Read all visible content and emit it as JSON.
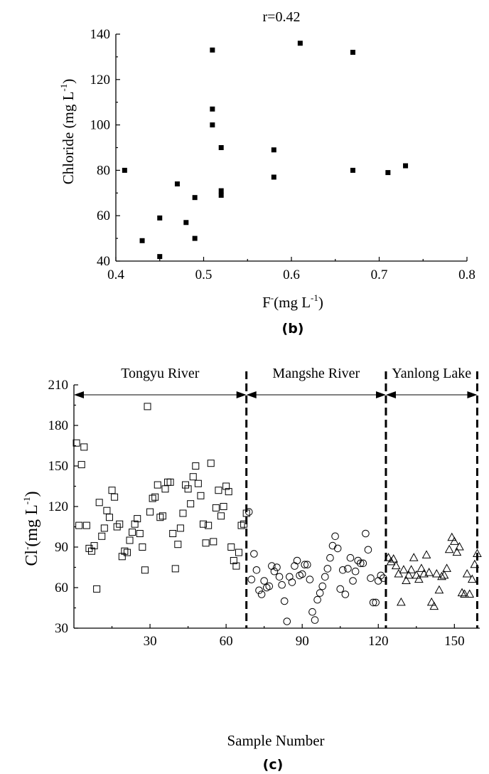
{
  "chart_data": [
    {
      "type": "scatter",
      "panel_label": "(b)",
      "title": "r=0.42",
      "xlabel": "F-(mg L-1)",
      "ylabel": "Chloride (mg L-1)",
      "xlabel_parts": {
        "base": "F",
        "sup1": "-",
        "mid": "(mg L",
        "sup2": "-1",
        "end": ")"
      },
      "ylabel_parts": {
        "base": "Chloride (mg L",
        "sup": "-1",
        "end": ")"
      },
      "xlim": [
        0.4,
        0.8
      ],
      "ylim": [
        40,
        140
      ],
      "xticks": [
        0.4,
        0.5,
        0.6,
        0.7,
        0.8
      ],
      "xtick_labels": [
        "0.4",
        "0.5",
        "0.6",
        "0.7",
        "0.8"
      ],
      "yticks": [
        40,
        60,
        80,
        100,
        120,
        140
      ],
      "ytick_labels": [
        "40",
        "60",
        "80",
        "100",
        "120",
        "140"
      ],
      "grid": false,
      "marker": "filled-square",
      "series": [
        {
          "points": [
            [
              0.41,
              80
            ],
            [
              0.43,
              49
            ],
            [
              0.45,
              59
            ],
            [
              0.45,
              42
            ],
            [
              0.47,
              74
            ],
            [
              0.48,
              57
            ],
            [
              0.49,
              68
            ],
            [
              0.49,
              50
            ],
            [
              0.51,
              133
            ],
            [
              0.51,
              107
            ],
            [
              0.51,
              100
            ],
            [
              0.52,
              90
            ],
            [
              0.52,
              71
            ],
            [
              0.52,
              69
            ],
            [
              0.58,
              89
            ],
            [
              0.58,
              77
            ],
            [
              0.61,
              136
            ],
            [
              0.67,
              132
            ],
            [
              0.67,
              80
            ],
            [
              0.71,
              79
            ],
            [
              0.73,
              82
            ]
          ]
        }
      ]
    },
    {
      "type": "scatter",
      "panel_label": "(c)",
      "xlabel": "Sample Number",
      "ylabel": "Cl-(mg L-1)",
      "ylabel_parts": {
        "base": "Cl",
        "sup1": "-",
        "mid": "(mg L",
        "sup2": "-1",
        "end": ")"
      },
      "xlim": [
        0,
        160
      ],
      "ylim": [
        30,
        210
      ],
      "xticks": [
        30,
        60,
        90,
        120,
        150
      ],
      "xtick_labels": [
        "30",
        "60",
        "90",
        "120",
        "150"
      ],
      "yticks": [
        30,
        60,
        90,
        120,
        150,
        180,
        210
      ],
      "ytick_labels": [
        "30",
        "60",
        "90",
        "120",
        "150",
        "180",
        "210"
      ],
      "grid": false,
      "regions": [
        {
          "label": "Tongyu River",
          "start": 0,
          "end": 68
        },
        {
          "label": "Mangshe River",
          "start": 68,
          "end": 123
        },
        {
          "label": "Yanlong Lake",
          "start": 123,
          "end": 159
        }
      ],
      "dividers": [
        68,
        123,
        159
      ],
      "series": [
        {
          "marker": "open-square",
          "points": [
            [
              1,
              167
            ],
            [
              2,
              106
            ],
            [
              3,
              151
            ],
            [
              4,
              164
            ],
            [
              5,
              106
            ],
            [
              6,
              89
            ],
            [
              7,
              87
            ],
            [
              8,
              91
            ],
            [
              9,
              59
            ],
            [
              10,
              123
            ],
            [
              11,
              98
            ],
            [
              12,
              104
            ],
            [
              13,
              117
            ],
            [
              14,
              112
            ],
            [
              15,
              132
            ],
            [
              16,
              127
            ],
            [
              17,
              105
            ],
            [
              18,
              107
            ],
            [
              19,
              83
            ],
            [
              20,
              87
            ],
            [
              21,
              86
            ],
            [
              22,
              95
            ],
            [
              23,
              101
            ],
            [
              24,
              107
            ],
            [
              25,
              111
            ],
            [
              26,
              100
            ],
            [
              27,
              90
            ],
            [
              28,
              73
            ],
            [
              29,
              194
            ],
            [
              30,
              116
            ],
            [
              31,
              126
            ],
            [
              32,
              127
            ],
            [
              33,
              136
            ],
            [
              34,
              112
            ],
            [
              35,
              113
            ],
            [
              36,
              133
            ],
            [
              37,
              138
            ],
            [
              38,
              138
            ],
            [
              39,
              100
            ],
            [
              40,
              74
            ],
            [
              41,
              92
            ],
            [
              42,
              104
            ],
            [
              43,
              115
            ],
            [
              44,
              136
            ],
            [
              45,
              133
            ],
            [
              46,
              122
            ],
            [
              47,
              142
            ],
            [
              48,
              150
            ],
            [
              49,
              137
            ],
            [
              50,
              128
            ],
            [
              51,
              107
            ],
            [
              52,
              93
            ],
            [
              53,
              106
            ],
            [
              54,
              152
            ],
            [
              55,
              94
            ],
            [
              56,
              119
            ],
            [
              57,
              132
            ],
            [
              58,
              113
            ],
            [
              59,
              120
            ],
            [
              60,
              135
            ],
            [
              61,
              131
            ],
            [
              62,
              90
            ],
            [
              63,
              80
            ],
            [
              64,
              76
            ],
            [
              65,
              86
            ],
            [
              66,
              106
            ],
            [
              67,
              107
            ],
            [
              68,
              115
            ]
          ]
        },
        {
          "marker": "open-circle",
          "points": [
            [
              69,
              116
            ],
            [
              70,
              66
            ],
            [
              71,
              85
            ],
            [
              72,
              73
            ],
            [
              73,
              58
            ],
            [
              74,
              55
            ],
            [
              75,
              65
            ],
            [
              76,
              60
            ],
            [
              77,
              61
            ],
            [
              78,
              76
            ],
            [
              79,
              72
            ],
            [
              80,
              75
            ],
            [
              81,
              68
            ],
            [
              82,
              62
            ],
            [
              83,
              50
            ],
            [
              84,
              35
            ],
            [
              85,
              68
            ],
            [
              86,
              64
            ],
            [
              87,
              76
            ],
            [
              88,
              80
            ],
            [
              89,
              69
            ],
            [
              90,
              70
            ],
            [
              91,
              77
            ],
            [
              92,
              77
            ],
            [
              93,
              66
            ],
            [
              94,
              42
            ],
            [
              95,
              36
            ],
            [
              96,
              51
            ],
            [
              97,
              56
            ],
            [
              98,
              61
            ],
            [
              99,
              68
            ],
            [
              100,
              74
            ],
            [
              101,
              82
            ],
            [
              102,
              91
            ],
            [
              103,
              98
            ],
            [
              104,
              89
            ],
            [
              105,
              59
            ],
            [
              106,
              73
            ],
            [
              107,
              55
            ],
            [
              108,
              74
            ],
            [
              109,
              82
            ],
            [
              110,
              65
            ],
            [
              111,
              72
            ],
            [
              112,
              80
            ],
            [
              113,
              78
            ],
            [
              114,
              78
            ],
            [
              115,
              100
            ],
            [
              116,
              88
            ],
            [
              117,
              67
            ],
            [
              118,
              49
            ],
            [
              119,
              49
            ],
            [
              120,
              65
            ],
            [
              121,
              69
            ],
            [
              122,
              67
            ]
          ]
        },
        {
          "marker": "open-triangle",
          "points": [
            [
              124,
              82
            ],
            [
              125,
              79
            ],
            [
              126,
              81
            ],
            [
              127,
              76
            ],
            [
              128,
              70
            ],
            [
              129,
              49
            ],
            [
              130,
              73
            ],
            [
              131,
              65
            ],
            [
              132,
              69
            ],
            [
              133,
              73
            ],
            [
              134,
              82
            ],
            [
              135,
              69
            ],
            [
              136,
              66
            ],
            [
              137,
              74
            ],
            [
              138,
              70
            ],
            [
              139,
              84
            ],
            [
              140,
              71
            ],
            [
              141,
              49
            ],
            [
              142,
              46
            ],
            [
              143,
              70
            ],
            [
              144,
              58
            ],
            [
              145,
              68
            ],
            [
              146,
              69
            ],
            [
              147,
              74
            ],
            [
              148,
              88
            ],
            [
              149,
              97
            ],
            [
              150,
              94
            ],
            [
              151,
              86
            ],
            [
              152,
              90
            ],
            [
              153,
              56
            ],
            [
              154,
              55
            ],
            [
              155,
              70
            ],
            [
              156,
              55
            ],
            [
              157,
              66
            ],
            [
              158,
              77
            ],
            [
              159,
              85
            ]
          ]
        }
      ]
    }
  ]
}
